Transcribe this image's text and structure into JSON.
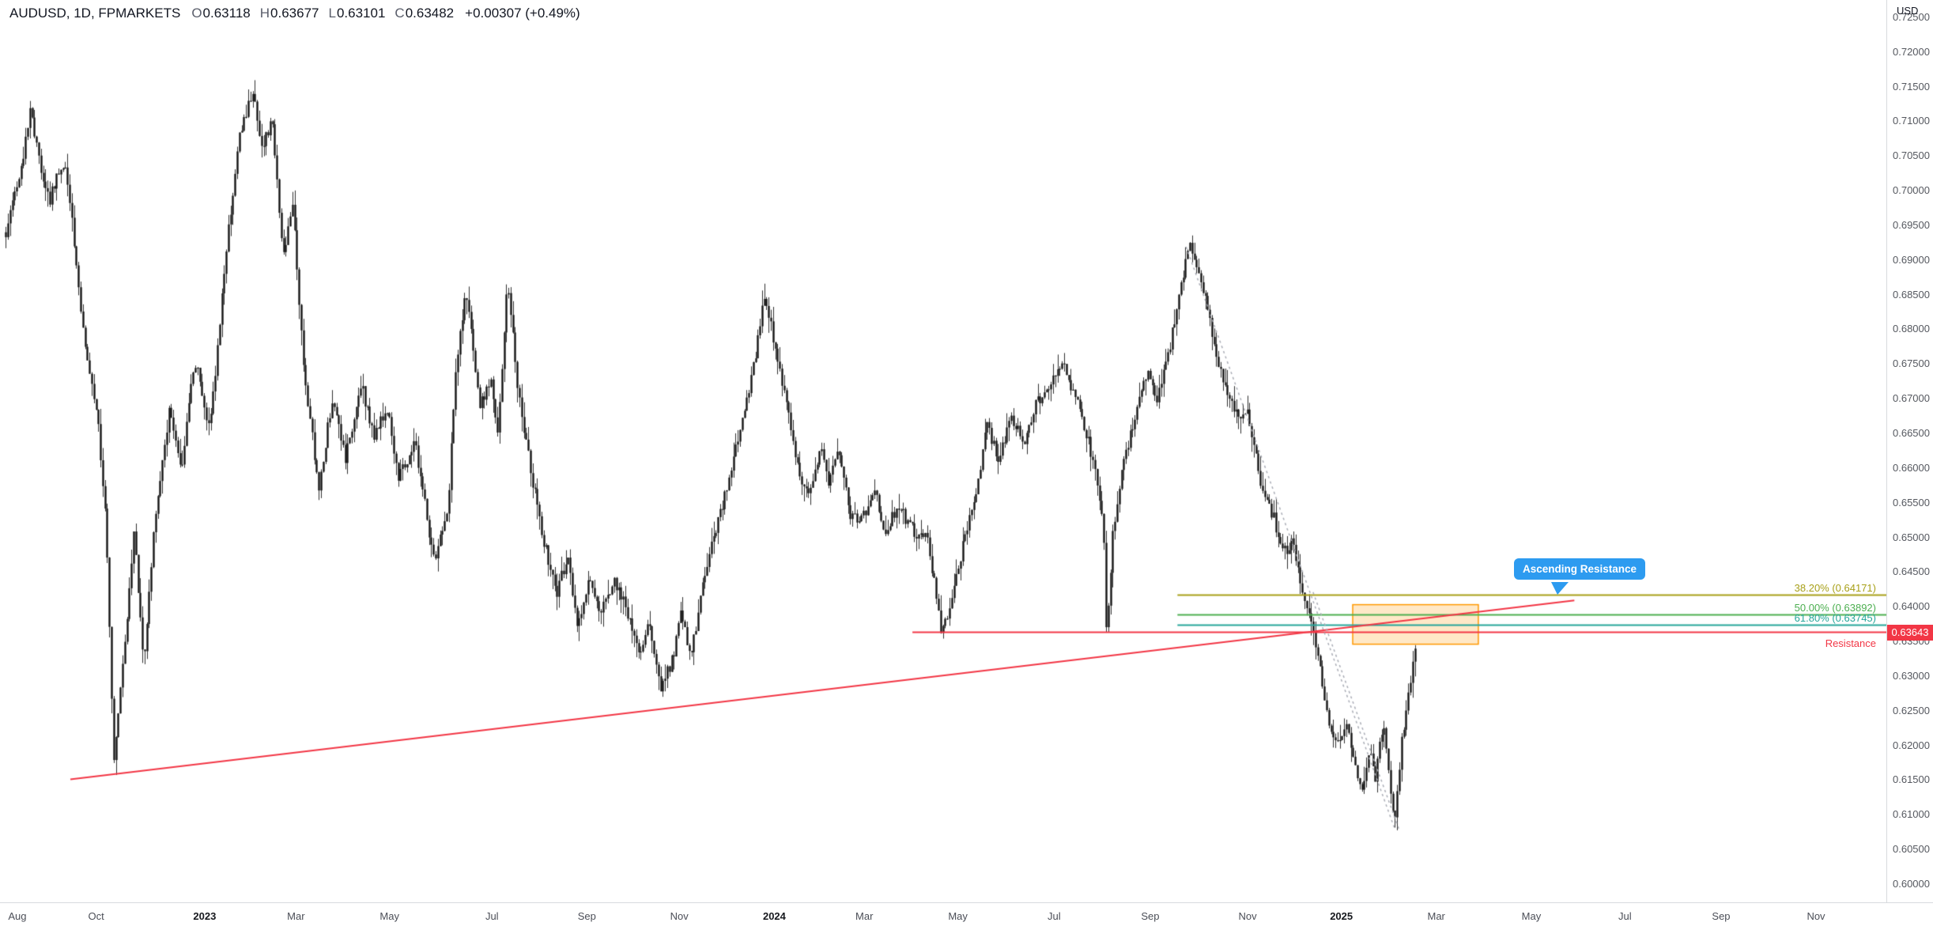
{
  "header": {
    "symbol_text": "AUDUSD, 1D, FPMARKETS",
    "currency": "USD",
    "ohlc": {
      "o_label": "O",
      "o": "0.63118",
      "h_label": "H",
      "h": "0.63677",
      "l_label": "L",
      "l": "0.63101",
      "c_label": "C",
      "c": "0.63482",
      "change": "+0.00307 (+0.49%)"
    }
  },
  "chart_data": {
    "type": "candlestick",
    "symbol": "AUDUSD",
    "timeframe": "1D",
    "provider": "FPMARKETS",
    "current": {
      "open": 0.63118,
      "high": 0.63677,
      "low": 0.63101,
      "close": 0.63482,
      "change": 0.00307,
      "change_pct": 0.49
    },
    "ylim": [
      0.59738,
      0.72749
    ],
    "y_ticks": [
      "0.72500",
      "0.72000",
      "0.71500",
      "0.71000",
      "0.70500",
      "0.70000",
      "0.69500",
      "0.69000",
      "0.68500",
      "0.68000",
      "0.67500",
      "0.67000",
      "0.66500",
      "0.66000",
      "0.65500",
      "0.65000",
      "0.64500",
      "0.64000",
      "0.63500",
      "0.63000",
      "0.62500",
      "0.62000",
      "0.61500",
      "0.61000",
      "0.60500",
      "0.60000"
    ],
    "x_ticks": [
      {
        "label": "Aug",
        "f": 0.0092
      },
      {
        "label": "Oct",
        "f": 0.051
      },
      {
        "label": "2023",
        "f": 0.1085,
        "year": true
      },
      {
        "label": "Mar",
        "f": 0.1569
      },
      {
        "label": "May",
        "f": 0.2065
      },
      {
        "label": "Jul",
        "f": 0.2608
      },
      {
        "label": "Sep",
        "f": 0.3111
      },
      {
        "label": "Nov",
        "f": 0.3601
      },
      {
        "label": "2024",
        "f": 0.4105,
        "year": true
      },
      {
        "label": "Mar",
        "f": 0.4582
      },
      {
        "label": "May",
        "f": 0.5078
      },
      {
        "label": "Jul",
        "f": 0.5588
      },
      {
        "label": "Sep",
        "f": 0.6098
      },
      {
        "label": "Nov",
        "f": 0.6614
      },
      {
        "label": "2025",
        "f": 0.7111,
        "year": true
      },
      {
        "label": "Mar",
        "f": 0.7614
      },
      {
        "label": "May",
        "f": 0.8118
      },
      {
        "label": "Jul",
        "f": 0.8614
      },
      {
        "label": "Sep",
        "f": 0.9124
      },
      {
        "label": "Nov",
        "f": 0.9627
      }
    ],
    "candles_count": 640,
    "last_f": 0.75,
    "price_path": [
      [
        0.003,
        0.694
      ],
      [
        0.007,
        0.699
      ],
      [
        0.012,
        0.7045
      ],
      [
        0.016,
        0.712
      ],
      [
        0.021,
        0.704
      ],
      [
        0.026,
        0.6985
      ],
      [
        0.03,
        0.702
      ],
      [
        0.034,
        0.704
      ],
      [
        0.038,
        0.697
      ],
      [
        0.041,
        0.6865
      ],
      [
        0.046,
        0.676
      ],
      [
        0.051,
        0.669
      ],
      [
        0.056,
        0.653
      ],
      [
        0.0601,
        0.618
      ],
      [
        0.065,
        0.631
      ],
      [
        0.071,
        0.651
      ],
      [
        0.076,
        0.632
      ],
      [
        0.082,
        0.653
      ],
      [
        0.09,
        0.669
      ],
      [
        0.096,
        0.659
      ],
      [
        0.103,
        0.676
      ],
      [
        0.111,
        0.665
      ],
      [
        0.12,
        0.692
      ],
      [
        0.127,
        0.708
      ],
      [
        0.134,
        0.7145
      ],
      [
        0.139,
        0.706
      ],
      [
        0.144,
        0.7105
      ],
      [
        0.15,
        0.69
      ],
      [
        0.155,
        0.698
      ],
      [
        0.161,
        0.674
      ],
      [
        0.169,
        0.657
      ],
      [
        0.176,
        0.67
      ],
      [
        0.183,
        0.661
      ],
      [
        0.191,
        0.6725
      ],
      [
        0.198,
        0.6645
      ],
      [
        0.205,
        0.669
      ],
      [
        0.211,
        0.659
      ],
      [
        0.22,
        0.6635
      ],
      [
        0.23,
        0.6465
      ],
      [
        0.237,
        0.653
      ],
      [
        0.242,
        0.676
      ],
      [
        0.247,
        0.6855
      ],
      [
        0.254,
        0.669
      ],
      [
        0.26,
        0.6725
      ],
      [
        0.264,
        0.665
      ],
      [
        0.269,
        0.6875
      ],
      [
        0.274,
        0.6725
      ],
      [
        0.281,
        0.66
      ],
      [
        0.288,
        0.6495
      ],
      [
        0.295,
        0.642
      ],
      [
        0.301,
        0.6475
      ],
      [
        0.306,
        0.637
      ],
      [
        0.312,
        0.644
      ],
      [
        0.318,
        0.6385
      ],
      [
        0.325,
        0.644
      ],
      [
        0.332,
        0.6395
      ],
      [
        0.339,
        0.633
      ],
      [
        0.344,
        0.6375
      ],
      [
        0.35,
        0.628
      ],
      [
        0.357,
        0.633
      ],
      [
        0.361,
        0.6395
      ],
      [
        0.366,
        0.6325
      ],
      [
        0.374,
        0.6455
      ],
      [
        0.379,
        0.651
      ],
      [
        0.386,
        0.658
      ],
      [
        0.392,
        0.665
      ],
      [
        0.399,
        0.674
      ],
      [
        0.405,
        0.685
      ],
      [
        0.411,
        0.6775
      ],
      [
        0.417,
        0.669
      ],
      [
        0.424,
        0.658
      ],
      [
        0.428,
        0.6565
      ],
      [
        0.435,
        0.6625
      ],
      [
        0.439,
        0.6575
      ],
      [
        0.444,
        0.6625
      ],
      [
        0.451,
        0.653
      ],
      [
        0.458,
        0.653
      ],
      [
        0.464,
        0.6565
      ],
      [
        0.469,
        0.651
      ],
      [
        0.476,
        0.6545
      ],
      [
        0.484,
        0.651
      ],
      [
        0.492,
        0.6495
      ],
      [
        0.499,
        0.636
      ],
      [
        0.505,
        0.642
      ],
      [
        0.511,
        0.6495
      ],
      [
        0.516,
        0.6545
      ],
      [
        0.523,
        0.666
      ],
      [
        0.529,
        0.6615
      ],
      [
        0.536,
        0.667
      ],
      [
        0.543,
        0.6635
      ],
      [
        0.549,
        0.669
      ],
      [
        0.557,
        0.6725
      ],
      [
        0.563,
        0.675
      ],
      [
        0.57,
        0.6705
      ],
      [
        0.575,
        0.666
      ],
      [
        0.58,
        0.66
      ],
      [
        0.585,
        0.651
      ],
      [
        0.5865,
        0.635
      ],
      [
        0.59,
        0.651
      ],
      [
        0.595,
        0.66
      ],
      [
        0.601,
        0.667
      ],
      [
        0.608,
        0.674
      ],
      [
        0.613,
        0.669
      ],
      [
        0.62,
        0.6775
      ],
      [
        0.626,
        0.6865
      ],
      [
        0.631,
        0.6925
      ],
      [
        0.637,
        0.6865
      ],
      [
        0.644,
        0.6775
      ],
      [
        0.65,
        0.6705
      ],
      [
        0.657,
        0.667
      ],
      [
        0.661,
        0.669
      ],
      [
        0.668,
        0.658
      ],
      [
        0.675,
        0.653
      ],
      [
        0.68,
        0.6475
      ],
      [
        0.685,
        0.6495
      ],
      [
        0.69,
        0.642
      ],
      [
        0.694,
        0.6385
      ],
      [
        0.698,
        0.634
      ],
      [
        0.701,
        0.628
      ],
      [
        0.705,
        0.6225
      ],
      [
        0.709,
        0.62
      ],
      [
        0.714,
        0.6225
      ],
      [
        0.718,
        0.617
      ],
      [
        0.722,
        0.6135
      ],
      [
        0.726,
        0.619
      ],
      [
        0.729,
        0.6155
      ],
      [
        0.733,
        0.6235
      ],
      [
        0.737,
        0.6135
      ],
      [
        0.7392,
        0.608
      ],
      [
        0.743,
        0.621
      ],
      [
        0.746,
        0.626
      ],
      [
        0.75,
        0.6348
      ]
    ],
    "colors": {
      "candle": "#141414",
      "wick": "#2e2e2e",
      "dotted": "#aaadb6"
    },
    "annotations": {
      "trendline": {
        "name": "ascending-resistance-trendline",
        "from": [
          0.0373,
          0.6151
        ],
        "to": [
          0.8346,
          0.6409
        ],
        "color": "#f23645"
      },
      "resistance": {
        "label": "Resistance",
        "price": 0.63643,
        "tag": "0.63643",
        "from_f": 0.4837,
        "color": "#f23645"
      },
      "fib": {
        "from_f": 0.6242,
        "levels": [
          {
            "pct": "38.20%",
            "price": 0.64171,
            "label": "38.20% (0.64171)",
            "color": "#a8a018"
          },
          {
            "pct": "50.00%",
            "price": 0.63892,
            "label": "50.00% (0.63892)",
            "color": "#4caf50"
          },
          {
            "pct": "61.80%",
            "price": 0.63745,
            "label": "61.80% (0.63745)",
            "color": "#26a69a"
          }
        ]
      },
      "zone_box": {
        "f0": 0.7171,
        "f1": 0.7837,
        "p_top": 0.6403,
        "p_bottom": 0.6346,
        "fill": "rgba(255,152,0,0.22)",
        "border": "#ff9800"
      },
      "callout": {
        "text": "Ascending Resistance",
        "bg": "#2d9bf0"
      },
      "dotted_lines": [
        {
          "from": [
            0.6288,
            0.6919
          ],
          "to": [
            0.7392,
            0.6081
          ]
        },
        {
          "from": [
            0.6961,
            0.6421
          ],
          "to": [
            0.7418,
            0.6078
          ]
        }
      ]
    }
  }
}
